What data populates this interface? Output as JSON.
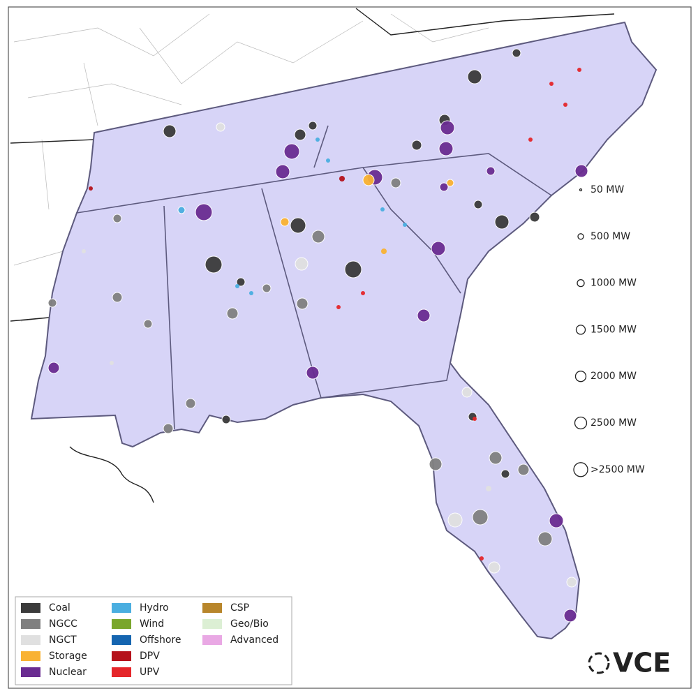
{
  "legend": {
    "items": [
      {
        "label": "Coal",
        "color": "#3b3b3b"
      },
      {
        "label": "NGCC",
        "color": "#808080"
      },
      {
        "label": "NGCT",
        "color": "#e0e0e0"
      },
      {
        "label": "Storage",
        "color": "#f9b233"
      },
      {
        "label": "Nuclear",
        "color": "#6a2c91"
      },
      {
        "label": "Hydro",
        "color": "#4aaee0"
      },
      {
        "label": "Wind",
        "color": "#7aa62c"
      },
      {
        "label": "Offshore",
        "color": "#1565b0"
      },
      {
        "label": "DPV",
        "color": "#b5121b"
      },
      {
        "label": "UPV",
        "color": "#e5262a"
      },
      {
        "label": "CSP",
        "color": "#b8862b"
      },
      {
        "label": "Geo/Bio",
        "color": "#dcefd4"
      },
      {
        "label": "Advanced",
        "color": "#e9a8e4"
      }
    ]
  },
  "size_legend": [
    "50 MW",
    "500 MW",
    "1000 MW",
    "1500 MW",
    "2000 MW",
    "2500 MW",
    ">2500 MW"
  ],
  "logo": "VCE"
}
